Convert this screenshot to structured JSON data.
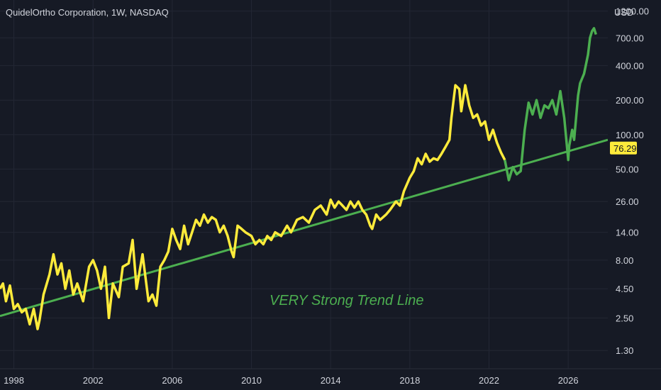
{
  "header": {
    "title": "QuidelOrtho Corporation, 1W, NASDAQ",
    "currency": "USD"
  },
  "chart_data": {
    "type": "line",
    "title": "QuidelOrtho Corporation, 1W, NASDAQ",
    "ylabel": "USD",
    "y_scale": "log",
    "ylim": [
      0.9,
      1500
    ],
    "xlim": [
      1997.3,
      2028.0
    ],
    "y_ticks": [
      "1200.00",
      "700.00",
      "400.00",
      "200.00",
      "100.00",
      "50.00",
      "26.00",
      "14.00",
      "8.00",
      "4.50",
      "2.50",
      "1.30"
    ],
    "x_ticks": [
      "1998",
      "2002",
      "2006",
      "2010",
      "2014",
      "2018",
      "2022",
      "2026"
    ],
    "grid": true,
    "last_price": "76.29",
    "annotation": "VERY Strong Trend Line",
    "colors": {
      "background": "#161a25",
      "price_history": "#ffeb3b",
      "projection": "#4caf50",
      "trend_line": "#4caf50",
      "price_label_bg": "#ffeb3b",
      "text": "#d1d4dc"
    },
    "series": [
      {
        "color": "#ffeb3b",
        "x": [
          1997.3,
          1997.45,
          1997.6,
          1997.8,
          1998.0,
          1998.2,
          1998.4,
          1998.6,
          1998.8,
          1999.0,
          1999.2,
          1999.3,
          1999.5,
          1999.8,
          2000.0,
          2000.2,
          2000.4,
          2000.6,
          2000.8,
          2001.0,
          2001.2,
          2001.5,
          2001.8,
          2002.0,
          2002.2,
          2002.4,
          2002.6,
          2002.8,
          2003.0,
          2003.3,
          2003.5,
          2003.8,
          2004.0,
          2004.2,
          2004.5,
          2004.8,
          2005.0,
          2005.2,
          2005.4,
          2005.6,
          2005.8,
          2006.0,
          2006.2,
          2006.4,
          2006.6,
          2006.8,
          2007.0,
          2007.2,
          2007.4,
          2007.6,
          2007.8,
          2008.0,
          2008.2,
          2008.4,
          2008.6,
          2008.8,
          2009.0,
          2009.1,
          2009.3,
          2009.5,
          2009.7,
          2010.0,
          2010.2,
          2010.4,
          2010.6,
          2010.8,
          2011.0,
          2011.2,
          2011.5,
          2011.8,
          2012.0,
          2012.3,
          2012.6,
          2012.9,
          2013.2,
          2013.5,
          2013.8,
          2014.0,
          2014.2,
          2014.4,
          2014.6,
          2014.8,
          2015.0,
          2015.2,
          2015.4,
          2015.6,
          2015.8,
          2016.0,
          2016.1,
          2016.3,
          2016.5,
          2016.8,
          2017.0,
          2017.3,
          2017.5,
          2017.7,
          2018.0,
          2018.2,
          2018.4,
          2018.6,
          2018.8,
          2019.0,
          2019.2,
          2019.4,
          2019.6,
          2019.8,
          2020.0,
          2020.1,
          2020.3,
          2020.5,
          2020.6,
          2020.8,
          2021.0,
          2021.2,
          2021.4,
          2021.6,
          2021.8,
          2022.0,
          2022.2,
          2022.4,
          2022.6,
          2022.8
        ],
        "y": [
          4.5,
          5.0,
          3.5,
          4.8,
          3.0,
          3.3,
          2.8,
          3.0,
          2.2,
          3.0,
          2.0,
          2.4,
          4.0,
          6.0,
          9.0,
          6.0,
          7.5,
          4.5,
          6.5,
          4.0,
          5.0,
          3.5,
          7.0,
          8.0,
          6.5,
          4.5,
          7.0,
          2.5,
          5.0,
          3.8,
          7.0,
          7.5,
          12.0,
          4.5,
          9.0,
          3.5,
          4.0,
          3.2,
          7.0,
          8.0,
          9.5,
          15.0,
          12.0,
          10.0,
          16.0,
          11.0,
          14.0,
          18.0,
          16.0,
          20.0,
          17.0,
          19.0,
          18.0,
          14.0,
          16.0,
          13.0,
          9.5,
          8.5,
          16.0,
          15.0,
          14.0,
          13.0,
          11.0,
          12.0,
          11.0,
          13.0,
          12.0,
          14.0,
          13.0,
          16.0,
          14.0,
          18.0,
          19.0,
          17.0,
          22.0,
          24.0,
          20.0,
          27.0,
          23.0,
          26.0,
          24.0,
          22.0,
          26.0,
          23.0,
          26.0,
          22.0,
          20.0,
          16.0,
          15.0,
          20.0,
          18.0,
          20.0,
          22.0,
          26.0,
          24.0,
          32.0,
          42.0,
          48.0,
          62.0,
          55.0,
          68.0,
          58.0,
          62.0,
          60.0,
          68.0,
          78.0,
          90.0,
          140.0,
          270.0,
          250.0,
          160.0,
          270.0,
          180.0,
          140.0,
          150.0,
          120.0,
          130.0,
          90.0,
          110.0,
          85.0,
          70.0,
          60.0
        ]
      },
      {
        "color": "#4caf50",
        "x": [
          2022.8,
          2023.0,
          2023.2,
          2023.4,
          2023.6,
          2023.8,
          2024.0,
          2024.2,
          2024.4,
          2024.6,
          2024.8,
          2025.0,
          2025.2,
          2025.4,
          2025.6,
          2025.8,
          2026.0,
          2026.05,
          2026.2,
          2026.3,
          2026.5,
          2026.6,
          2026.8,
          2027.0,
          2027.1,
          2027.2,
          2027.3,
          2027.4
        ],
        "y": [
          60.0,
          40.0,
          52.0,
          45.0,
          48.0,
          110.0,
          190.0,
          150.0,
          200.0,
          140.0,
          180.0,
          170.0,
          200.0,
          150.0,
          240.0,
          140.0,
          60.0,
          80.0,
          110.0,
          90.0,
          220.0,
          280.0,
          340.0,
          500.0,
          700.0,
          800.0,
          850.0,
          750.0
        ]
      }
    ],
    "trend_line": {
      "x": [
        1997.3,
        2028.0
      ],
      "y": [
        2.6,
        90.0
      ]
    }
  }
}
